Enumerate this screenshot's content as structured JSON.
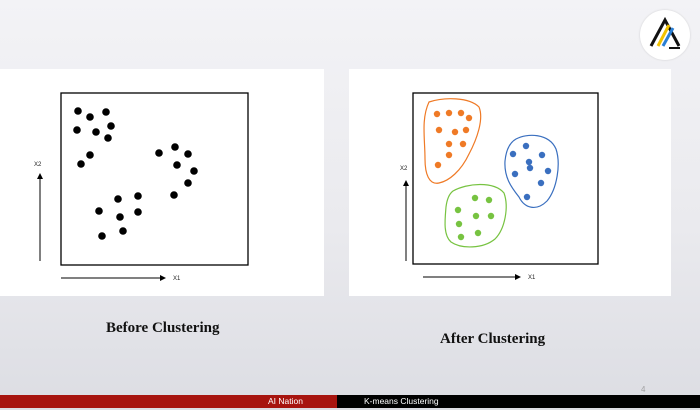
{
  "logo": {
    "icon": "ai-nation-logo-icon",
    "colors": [
      "#111111",
      "#f2c200",
      "#2a7fd4"
    ]
  },
  "before_panel": {
    "caption": "Before Clustering",
    "x_axis_label": "X1",
    "y_axis_label": "X2",
    "point_color": "#000000",
    "points": [
      [
        78,
        111
      ],
      [
        90,
        117
      ],
      [
        106,
        112
      ],
      [
        77,
        130
      ],
      [
        96,
        132
      ],
      [
        111,
        126
      ],
      [
        108,
        138
      ],
      [
        90,
        155
      ],
      [
        81,
        164
      ],
      [
        159,
        153
      ],
      [
        175,
        147
      ],
      [
        188,
        154
      ],
      [
        177,
        165
      ],
      [
        194,
        171
      ],
      [
        188,
        183
      ],
      [
        174,
        195
      ],
      [
        138,
        196
      ],
      [
        118,
        199
      ],
      [
        99,
        211
      ],
      [
        120,
        217
      ],
      [
        138,
        212
      ],
      [
        123,
        231
      ],
      [
        102,
        236
      ]
    ]
  },
  "after_panel": {
    "caption": "After Clustering",
    "x_axis_label": "X1",
    "y_axis_label": "X2",
    "clusters": [
      {
        "name": "orange",
        "color": "#ef7a26",
        "points": [
          [
            437,
            114
          ],
          [
            449,
            113
          ],
          [
            461,
            113
          ],
          [
            439,
            130
          ],
          [
            455,
            132
          ],
          [
            466,
            130
          ],
          [
            469,
            118
          ],
          [
            449,
            144
          ],
          [
            463,
            144
          ],
          [
            449,
            155
          ],
          [
            438,
            165
          ]
        ]
      },
      {
        "name": "blue",
        "color": "#3a6fbf",
        "points": [
          [
            526,
            146
          ],
          [
            513,
            154
          ],
          [
            542,
            155
          ],
          [
            529,
            162
          ],
          [
            515,
            174
          ],
          [
            530,
            168
          ],
          [
            548,
            171
          ],
          [
            541,
            183
          ],
          [
            527,
            197
          ]
        ]
      },
      {
        "name": "green",
        "color": "#77c341",
        "points": [
          [
            475,
            198
          ],
          [
            489,
            200
          ],
          [
            458,
            210
          ],
          [
            476,
            216
          ],
          [
            491,
            216
          ],
          [
            459,
            224
          ],
          [
            478,
            233
          ],
          [
            461,
            237
          ]
        ]
      }
    ]
  },
  "footer": {
    "brand": "AI Nation",
    "topic": "K-means Clustering",
    "page_number": "4",
    "left_color": "#a7140f",
    "right_color": "#000000"
  }
}
